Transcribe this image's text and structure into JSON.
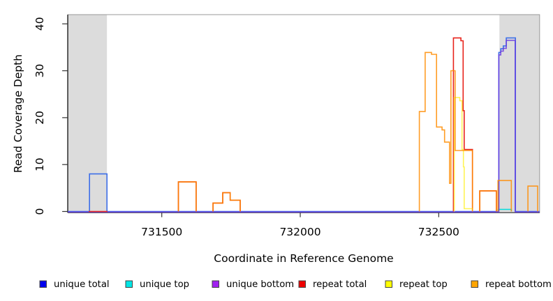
{
  "chart_data": {
    "type": "line",
    "subtype": "step-coverage-plot",
    "title": "",
    "xlabel": "Coordinate in Reference Genome",
    "ylabel": "Read Coverage Depth",
    "xlim": [
      731161,
      732864
    ],
    "ylim": [
      0,
      42
    ],
    "grid": false,
    "legend_position": "bottom",
    "background_color": "#ffffff",
    "shaded_region_color": "#DCDCDC",
    "frame_color": "#999999",
    "axis_color": "#333333",
    "xticks": {
      "values": [
        731500,
        732000,
        732500
      ],
      "labels": [
        "731500",
        "732000",
        "732500"
      ]
    },
    "yticks": {
      "values": [
        0,
        10,
        20,
        30,
        40
      ],
      "labels": [
        "0",
        "10",
        "20",
        "30",
        "40"
      ]
    },
    "shaded_regions": [
      {
        "start": 731161,
        "end": 731302
      },
      {
        "start": 732719,
        "end": 732864
      }
    ],
    "series": [
      {
        "name": "unique total",
        "legend_color": "#0000EE",
        "line_color": "#3D6FE8",
        "opacity": 1,
        "segments": [
          [
            [
              731161,
              0
            ],
            [
              731239,
              8
            ],
            [
              731302,
              0
            ],
            [
              732717,
              33.9
            ],
            [
              732724,
              34.7
            ],
            [
              732733,
              35.3
            ],
            [
              732744,
              37
            ],
            [
              732777,
              0
            ],
            [
              732864,
              0
            ]
          ]
        ]
      },
      {
        "name": "unique top",
        "legend_color": "#00E5E5",
        "line_color": "#00DCDC",
        "opacity": 1,
        "segments": [
          [
            [
              732714,
              0.45
            ],
            [
              732762,
              0
            ]
          ]
        ]
      },
      {
        "name": "unique bottom",
        "legend_color": "#A020F0",
        "line_color": "#6A3BE0",
        "opacity": 0.85,
        "segments": [
          [
            [
              731161,
              0
            ],
            [
              732717,
              33.5
            ],
            [
              732724,
              34.3
            ],
            [
              732733,
              34.9
            ],
            [
              732744,
              36.6
            ],
            [
              732776,
              0
            ],
            [
              732864,
              0
            ]
          ]
        ]
      },
      {
        "name": "repeat total",
        "legend_color": "#EE0000",
        "line_color": "#E8231B",
        "opacity": 1,
        "segments": [
          [
            [
              731236,
              0
            ],
            [
              731304,
              0
            ]
          ],
          [
            [
              731560,
              6.3
            ],
            [
              731624,
              0
            ]
          ],
          [
            [
              731685,
              1.8
            ],
            [
              731720,
              4.0
            ],
            [
              731747,
              2.4
            ],
            [
              731783,
              0
            ]
          ],
          [
            [
              732553,
              37
            ],
            [
              732580,
              36.4
            ],
            [
              732588,
              21.5
            ],
            [
              732592,
              13.2
            ],
            [
              732622,
              0
            ]
          ],
          [
            [
              732648,
              4.4
            ],
            [
              732708,
              0
            ]
          ]
        ]
      },
      {
        "name": "repeat top",
        "legend_color": "#FFFF00",
        "line_color": "#FFF34D",
        "opacity": 0.95,
        "segments": [
          [
            [
              732556,
              24.3
            ],
            [
              732576,
              23.6
            ],
            [
              732584,
              13.2
            ],
            [
              732589,
              9.5
            ],
            [
              732592,
              0.6
            ],
            [
              732622,
              0
            ]
          ]
        ]
      },
      {
        "name": "repeat bottom",
        "legend_color": "#FFA500",
        "line_color": "#FF8C00",
        "opacity": 0.85,
        "segments": [
          [
            [
              731560,
              6.3
            ],
            [
              731624,
              0
            ]
          ],
          [
            [
              731685,
              1.8
            ],
            [
              731720,
              4.0
            ],
            [
              731747,
              2.4
            ],
            [
              731783,
              0
            ]
          ],
          [
            [
              732430,
              21.3
            ],
            [
              732451,
              33.9
            ],
            [
              732474,
              33.5
            ],
            [
              732492,
              18.0
            ],
            [
              732512,
              17.4
            ],
            [
              732521,
              14.8
            ],
            [
              732539,
              6.0
            ],
            [
              732544,
              30.0
            ],
            [
              732559,
              13.0
            ],
            [
              732622,
              0
            ]
          ],
          [
            [
              732648,
              4.4
            ],
            [
              732708,
              0
            ]
          ],
          [
            [
              732714,
              6.6
            ],
            [
              732762,
              0
            ]
          ],
          [
            [
              732822,
              5.4
            ],
            [
              732857,
              0
            ]
          ]
        ]
      }
    ]
  }
}
